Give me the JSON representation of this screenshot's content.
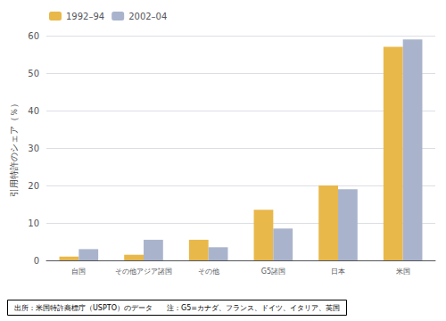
{
  "chart_data": {
    "type": "bar",
    "categories": [
      "自国",
      "その他アジア諸国",
      "その他",
      "G5諸国",
      "日本",
      "米国"
    ],
    "series": [
      {
        "name": "1992–94",
        "color": "#E8B84B",
        "values": [
          1.0,
          1.5,
          5.5,
          13.5,
          20.0,
          57.0
        ]
      },
      {
        "name": "2002–04",
        "color": "#A9B4CC",
        "values": [
          3.0,
          5.5,
          3.5,
          8.5,
          19.0,
          59.0
        ]
      }
    ],
    "ylabel": "引用特許のシェア（％）",
    "annotations": [
      "出所：米国特許商標庁（USPTO）のデータ　　注：G5=カナダ、フランス、ドイツ、イタリア、英国"
    ],
    "ylim": [
      0,
      60
    ],
    "yticks": [
      0,
      10,
      20,
      30,
      40,
      50,
      60
    ],
    "grid": true,
    "legend": "upper left"
  }
}
